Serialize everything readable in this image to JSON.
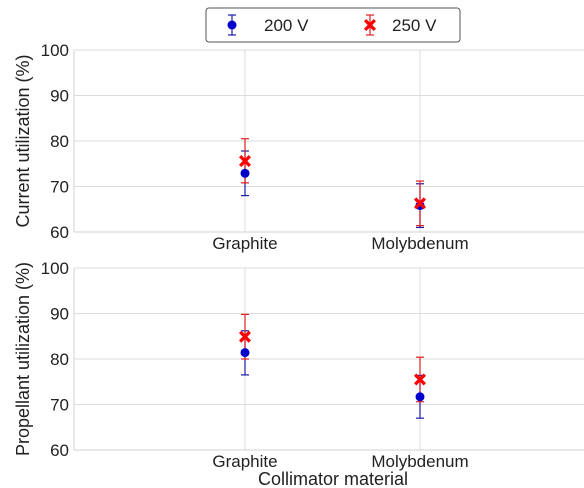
{
  "legend": {
    "entries": [
      {
        "label": "200 V",
        "color": "#0000cc",
        "marker": "circle",
        "error_color": "#1a1aaa"
      },
      {
        "label": "250 V",
        "color": "#ff0000",
        "marker": "x-filled",
        "error_color": "#e02020"
      }
    ],
    "placement": "top-center"
  },
  "chart_data": [
    {
      "type": "scatter",
      "ylabel": "Current utilization (%)",
      "xlabel": "",
      "categories": [
        "Graphite",
        "Molybdenum"
      ],
      "ylim": [
        60,
        100
      ],
      "yticks": [
        60,
        70,
        80,
        90,
        100
      ],
      "grid": true,
      "error_bars": true,
      "series": [
        {
          "name": "200 V",
          "values": [
            72.9,
            65.8
          ],
          "err_low": [
            68.0,
            61.0
          ],
          "err_high": [
            77.8,
            70.6
          ]
        },
        {
          "name": "250 V",
          "values": [
            75.6,
            66.3
          ],
          "err_low": [
            70.8,
            61.4
          ],
          "err_high": [
            80.5,
            71.2
          ]
        }
      ]
    },
    {
      "type": "scatter",
      "ylabel": "Propellant utilization (%)",
      "xlabel": "Collimator material",
      "categories": [
        "Graphite",
        "Molybdenum"
      ],
      "ylim": [
        60,
        100
      ],
      "yticks": [
        60,
        70,
        80,
        90,
        100
      ],
      "grid": true,
      "error_bars": true,
      "series": [
        {
          "name": "200 V",
          "values": [
            81.4,
            71.7
          ],
          "err_low": [
            76.5,
            67.0
          ],
          "err_high": [
            86.2,
            76.4
          ]
        },
        {
          "name": "250 V",
          "values": [
            84.9,
            75.5
          ],
          "err_low": [
            80.0,
            70.6
          ],
          "err_high": [
            89.8,
            80.4
          ]
        }
      ]
    }
  ]
}
